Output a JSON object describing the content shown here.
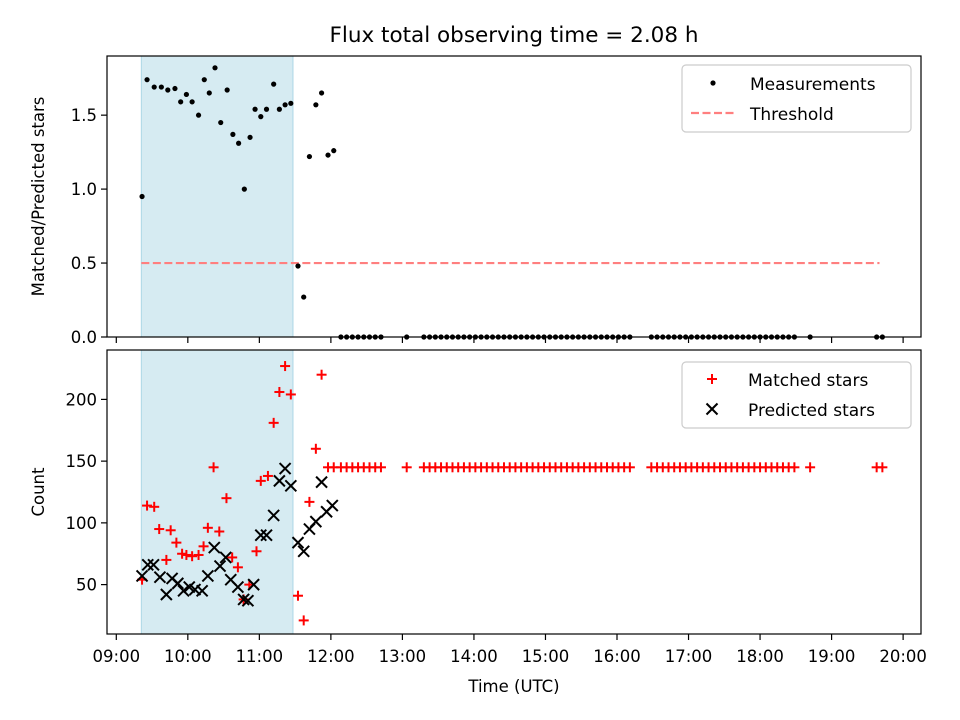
{
  "title": "Flux total observing time = 2.08 h",
  "colors": {
    "measurement": "#000000",
    "threshold": "#ff7f7f",
    "matched": "#ff0000",
    "predicted": "#000000",
    "shade": "#add8e6"
  },
  "chart_data": [
    {
      "type": "scatter",
      "ylabel": "Matched/Predicted stars",
      "xlabel": "",
      "xlim": [
        8.87,
        20.25
      ],
      "ylim": [
        0,
        1.9
      ],
      "yticks": [
        0.0,
        0.5,
        1.0,
        1.5
      ],
      "ytick_labels": [
        "0.0",
        "0.5",
        "1.0",
        "1.5"
      ],
      "shaded_region": [
        9.35,
        11.47
      ],
      "legend_position": "top-right",
      "legend": [
        "Measurements",
        "Threshold"
      ],
      "threshold": {
        "name": "Threshold",
        "value": 0.5,
        "x_range": [
          9.35,
          19.67
        ]
      },
      "series": [
        {
          "name": "Measurements",
          "points": [
            [
              9.36,
              0.95
            ],
            [
              9.43,
              1.74
            ],
            [
              9.53,
              1.69
            ],
            [
              9.63,
              1.69
            ],
            [
              9.72,
              1.67
            ],
            [
              9.82,
              1.68
            ],
            [
              9.9,
              1.59
            ],
            [
              9.98,
              1.64
            ],
            [
              10.06,
              1.59
            ],
            [
              10.15,
              1.5
            ],
            [
              10.23,
              1.74
            ],
            [
              10.3,
              1.65
            ],
            [
              10.38,
              1.82
            ],
            [
              10.46,
              1.45
            ],
            [
              10.55,
              1.67
            ],
            [
              10.63,
              1.37
            ],
            [
              10.71,
              1.31
            ],
            [
              10.79,
              1.0
            ],
            [
              10.87,
              1.35
            ],
            [
              10.94,
              1.54
            ],
            [
              11.02,
              1.49
            ],
            [
              11.1,
              1.54
            ],
            [
              11.2,
              1.71
            ],
            [
              11.28,
              1.54
            ],
            [
              11.36,
              1.57
            ],
            [
              11.44,
              1.58
            ],
            [
              11.54,
              0.48
            ],
            [
              11.62,
              0.27
            ],
            [
              11.7,
              1.22
            ],
            [
              11.79,
              1.57
            ],
            [
              11.87,
              1.65
            ],
            [
              11.96,
              1.23
            ],
            [
              12.04,
              1.26
            ],
            [
              12.14,
              0
            ],
            [
              12.22,
              0
            ],
            [
              12.3,
              0
            ],
            [
              12.38,
              0
            ],
            [
              12.46,
              0
            ],
            [
              12.54,
              0
            ],
            [
              12.62,
              0
            ],
            [
              12.7,
              0
            ],
            [
              13.06,
              0
            ],
            [
              13.3,
              0
            ],
            [
              13.38,
              0
            ],
            [
              13.46,
              0
            ],
            [
              13.54,
              0
            ],
            [
              13.62,
              0
            ],
            [
              13.7,
              0
            ],
            [
              13.78,
              0
            ],
            [
              13.86,
              0
            ],
            [
              13.94,
              0
            ],
            [
              14.02,
              0
            ],
            [
              14.1,
              0
            ],
            [
              14.18,
              0
            ],
            [
              14.26,
              0
            ],
            [
              14.34,
              0
            ],
            [
              14.42,
              0
            ],
            [
              14.5,
              0
            ],
            [
              14.58,
              0
            ],
            [
              14.66,
              0
            ],
            [
              14.74,
              0
            ],
            [
              14.82,
              0
            ],
            [
              14.9,
              0
            ],
            [
              14.98,
              0
            ],
            [
              15.06,
              0
            ],
            [
              15.14,
              0
            ],
            [
              15.22,
              0
            ],
            [
              15.3,
              0
            ],
            [
              15.38,
              0
            ],
            [
              15.46,
              0
            ],
            [
              15.54,
              0
            ],
            [
              15.62,
              0
            ],
            [
              15.7,
              0
            ],
            [
              15.78,
              0
            ],
            [
              15.86,
              0
            ],
            [
              15.94,
              0
            ],
            [
              16.02,
              0
            ],
            [
              16.1,
              0
            ],
            [
              16.18,
              0
            ],
            [
              16.48,
              0
            ],
            [
              16.56,
              0
            ],
            [
              16.64,
              0
            ],
            [
              16.72,
              0
            ],
            [
              16.8,
              0
            ],
            [
              16.88,
              0
            ],
            [
              16.96,
              0
            ],
            [
              17.04,
              0
            ],
            [
              17.12,
              0
            ],
            [
              17.2,
              0
            ],
            [
              17.28,
              0
            ],
            [
              17.36,
              0
            ],
            [
              17.44,
              0
            ],
            [
              17.52,
              0
            ],
            [
              17.6,
              0
            ],
            [
              17.68,
              0
            ],
            [
              17.76,
              0
            ],
            [
              17.84,
              0
            ],
            [
              17.92,
              0
            ],
            [
              18.0,
              0
            ],
            [
              18.08,
              0
            ],
            [
              18.16,
              0
            ],
            [
              18.24,
              0
            ],
            [
              18.32,
              0
            ],
            [
              18.4,
              0
            ],
            [
              18.48,
              0
            ],
            [
              18.7,
              0
            ],
            [
              19.63,
              0
            ],
            [
              19.71,
              0
            ]
          ]
        }
      ]
    },
    {
      "type": "scatter",
      "ylabel": "Count",
      "xlabel": "Time (UTC)",
      "xlim": [
        8.87,
        20.25
      ],
      "ylim": [
        10,
        240
      ],
      "yticks": [
        50,
        100,
        150,
        200
      ],
      "ytick_labels": [
        "50",
        "100",
        "150",
        "200"
      ],
      "xticks": [
        9,
        10,
        11,
        12,
        13,
        14,
        15,
        16,
        17,
        18,
        19,
        20
      ],
      "xtick_labels": [
        "09:00",
        "10:00",
        "11:00",
        "12:00",
        "13:00",
        "14:00",
        "15:00",
        "16:00",
        "17:00",
        "18:00",
        "19:00",
        "20:00"
      ],
      "shaded_region": [
        9.35,
        11.47
      ],
      "legend_position": "top-right",
      "legend": [
        "Matched stars",
        "Predicted stars"
      ],
      "series": [
        {
          "name": "Matched stars",
          "points": [
            [
              9.36,
              54
            ],
            [
              9.43,
              114
            ],
            [
              9.53,
              113
            ],
            [
              9.6,
              95
            ],
            [
              9.7,
              70
            ],
            [
              9.76,
              94
            ],
            [
              9.84,
              84
            ],
            [
              9.92,
              75
            ],
            [
              9.98,
              74
            ],
            [
              10.06,
              73
            ],
            [
              10.15,
              74
            ],
            [
              10.22,
              81
            ],
            [
              10.28,
              96
            ],
            [
              10.36,
              145
            ],
            [
              10.44,
              93
            ],
            [
              10.54,
              120
            ],
            [
              10.62,
              72
            ],
            [
              10.7,
              64
            ],
            [
              10.78,
              38
            ],
            [
              10.86,
              50
            ],
            [
              10.96,
              77
            ],
            [
              11.02,
              134
            ],
            [
              11.12,
              138
            ],
            [
              11.2,
              181
            ],
            [
              11.28,
              206
            ],
            [
              11.36,
              227
            ],
            [
              11.44,
              204
            ],
            [
              11.54,
              41
            ],
            [
              11.62,
              21
            ],
            [
              11.7,
              117
            ],
            [
              11.79,
              160
            ],
            [
              11.87,
              220
            ],
            [
              11.96,
              145
            ],
            [
              12.04,
              145
            ],
            [
              12.14,
              145
            ],
            [
              12.22,
              145
            ],
            [
              12.3,
              145
            ],
            [
              12.38,
              145
            ],
            [
              12.46,
              145
            ],
            [
              12.54,
              145
            ],
            [
              12.62,
              145
            ],
            [
              12.7,
              145
            ],
            [
              13.06,
              145
            ],
            [
              13.3,
              145
            ],
            [
              13.38,
              145
            ],
            [
              13.46,
              145
            ],
            [
              13.54,
              145
            ],
            [
              13.62,
              145
            ],
            [
              13.7,
              145
            ],
            [
              13.78,
              145
            ],
            [
              13.86,
              145
            ],
            [
              13.94,
              145
            ],
            [
              14.02,
              145
            ],
            [
              14.1,
              145
            ],
            [
              14.18,
              145
            ],
            [
              14.26,
              145
            ],
            [
              14.34,
              145
            ],
            [
              14.42,
              145
            ],
            [
              14.5,
              145
            ],
            [
              14.58,
              145
            ],
            [
              14.66,
              145
            ],
            [
              14.74,
              145
            ],
            [
              14.82,
              145
            ],
            [
              14.9,
              145
            ],
            [
              14.98,
              145
            ],
            [
              15.06,
              145
            ],
            [
              15.14,
              145
            ],
            [
              15.22,
              145
            ],
            [
              15.3,
              145
            ],
            [
              15.38,
              145
            ],
            [
              15.46,
              145
            ],
            [
              15.54,
              145
            ],
            [
              15.62,
              145
            ],
            [
              15.7,
              145
            ],
            [
              15.78,
              145
            ],
            [
              15.86,
              145
            ],
            [
              15.94,
              145
            ],
            [
              16.02,
              145
            ],
            [
              16.1,
              145
            ],
            [
              16.18,
              145
            ],
            [
              16.48,
              145
            ],
            [
              16.56,
              145
            ],
            [
              16.64,
              145
            ],
            [
              16.72,
              145
            ],
            [
              16.8,
              145
            ],
            [
              16.88,
              145
            ],
            [
              16.96,
              145
            ],
            [
              17.04,
              145
            ],
            [
              17.12,
              145
            ],
            [
              17.2,
              145
            ],
            [
              17.28,
              145
            ],
            [
              17.36,
              145
            ],
            [
              17.44,
              145
            ],
            [
              17.52,
              145
            ],
            [
              17.6,
              145
            ],
            [
              17.68,
              145
            ],
            [
              17.76,
              145
            ],
            [
              17.84,
              145
            ],
            [
              17.92,
              145
            ],
            [
              18.0,
              145
            ],
            [
              18.08,
              145
            ],
            [
              18.16,
              145
            ],
            [
              18.24,
              145
            ],
            [
              18.32,
              145
            ],
            [
              18.4,
              145
            ],
            [
              18.48,
              145
            ],
            [
              18.7,
              145
            ],
            [
              19.63,
              145
            ],
            [
              19.71,
              145
            ]
          ]
        },
        {
          "name": "Predicted stars",
          "points": [
            [
              9.36,
              57
            ],
            [
              9.44,
              66
            ],
            [
              9.52,
              66
            ],
            [
              9.61,
              56
            ],
            [
              9.7,
              42
            ],
            [
              9.78,
              55
            ],
            [
              9.86,
              51
            ],
            [
              9.94,
              45
            ],
            [
              10.02,
              48
            ],
            [
              10.1,
              46
            ],
            [
              10.2,
              45
            ],
            [
              10.28,
              57
            ],
            [
              10.37,
              80
            ],
            [
              10.45,
              65
            ],
            [
              10.53,
              72
            ],
            [
              10.6,
              54
            ],
            [
              10.7,
              48
            ],
            [
              10.78,
              38
            ],
            [
              10.84,
              37
            ],
            [
              10.92,
              50
            ],
            [
              11.02,
              90
            ],
            [
              11.1,
              90
            ],
            [
              11.2,
              106
            ],
            [
              11.28,
              134
            ],
            [
              11.36,
              144
            ],
            [
              11.44,
              130
            ],
            [
              11.54,
              84
            ],
            [
              11.62,
              77
            ],
            [
              11.7,
              95
            ],
            [
              11.79,
              101
            ],
            [
              11.87,
              133
            ],
            [
              11.94,
              109
            ],
            [
              12.02,
              114
            ]
          ]
        }
      ]
    }
  ]
}
